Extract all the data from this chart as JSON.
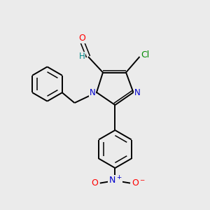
{
  "background_color": "#ebebeb",
  "bond_color": "#000000",
  "atom_colors": {
    "N": "#0000cc",
    "O": "#ff0000",
    "Cl": "#008800",
    "H": "#008888",
    "C": "#000000"
  },
  "figsize": [
    3.0,
    3.0
  ],
  "dpi": 100
}
